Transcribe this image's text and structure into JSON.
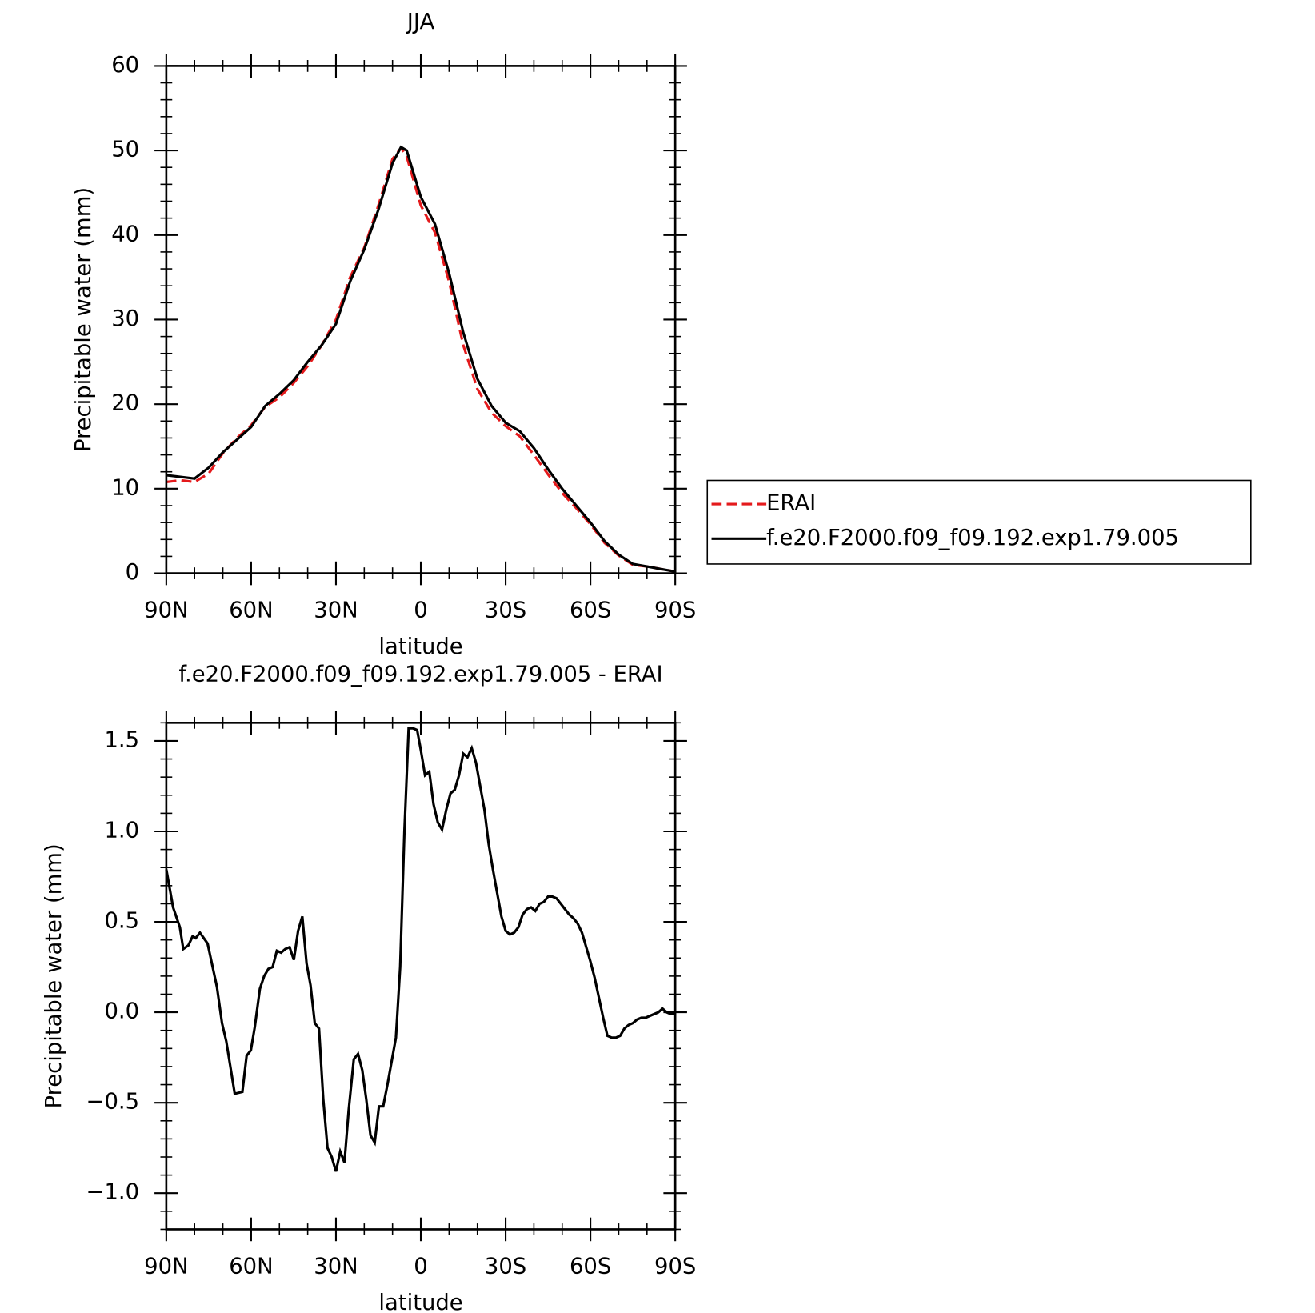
{
  "chart_data": [
    {
      "type": "line",
      "title": "JJA",
      "xlabel": "latitude",
      "ylabel": "Precipitable water (mm)",
      "x": [
        90,
        85,
        80,
        75,
        70,
        65,
        60,
        55,
        50,
        45,
        40,
        35,
        30,
        25,
        20,
        15,
        10,
        7,
        5,
        0,
        -5,
        -10,
        -15,
        -20,
        -25,
        -30,
        -35,
        -40,
        -45,
        -50,
        -55,
        -60,
        -65,
        -70,
        -75,
        -80,
        -85,
        -90
      ],
      "series": [
        {
          "name": "ERAI",
          "color": "#e41a1c",
          "linestyle": "dashed",
          "values": [
            10.8,
            11.0,
            10.8,
            11.8,
            14.2,
            16.0,
            17.5,
            19.7,
            20.8,
            22.5,
            24.5,
            27.0,
            30.0,
            35.0,
            38.5,
            43.5,
            49.0,
            50.3,
            49.3,
            43.5,
            40.3,
            34.5,
            27.0,
            21.8,
            19.0,
            17.4,
            16.2,
            14.0,
            11.7,
            9.5,
            7.7,
            5.8,
            3.6,
            2.1,
            1.0,
            0.8,
            0.5,
            0.2
          ]
        },
        {
          "name": "f.e20.F2000.f09_f09.192.exp1.79.005",
          "color": "#000000",
          "linestyle": "solid",
          "values": [
            11.6,
            11.4,
            11.2,
            12.5,
            14.3,
            15.8,
            17.3,
            19.8,
            21.2,
            22.8,
            25.0,
            27.0,
            29.5,
            34.5,
            38.3,
            43.0,
            48.5,
            50.4,
            50.0,
            44.5,
            41.3,
            35.5,
            28.5,
            23.0,
            19.8,
            17.8,
            16.8,
            14.8,
            12.3,
            10.0,
            8.0,
            6.0,
            3.8,
            2.2,
            1.1,
            0.8,
            0.5,
            0.2
          ]
        }
      ],
      "xlim": [
        90,
        -90
      ],
      "xticks": [
        {
          "value": 90,
          "label": "90N"
        },
        {
          "value": 60,
          "label": "60N"
        },
        {
          "value": 30,
          "label": "30N"
        },
        0,
        {
          "value": -30,
          "label": "30S"
        },
        {
          "value": -60,
          "label": "60S"
        },
        {
          "value": -90,
          "label": "90S"
        }
      ],
      "xminorticks": [
        80,
        70,
        50,
        40,
        20,
        10,
        -10,
        -20,
        -40,
        -50,
        -70,
        -80
      ],
      "ylim": [
        0,
        60
      ],
      "yticks": [
        0,
        10,
        20,
        30,
        40,
        50,
        60
      ],
      "yminorticks": [
        2,
        4,
        6,
        8,
        12,
        14,
        16,
        18,
        22,
        24,
        26,
        28,
        32,
        34,
        36,
        38,
        42,
        44,
        46,
        48,
        52,
        54,
        56,
        58
      ],
      "legend": "right"
    },
    {
      "type": "line",
      "title": "f.e20.F2000.f09_f09.192.exp1.79.005 - ERAI",
      "xlabel": "latitude",
      "ylabel": "Precipitable water (mm)",
      "x": [
        90,
        87.6,
        85.2,
        84,
        82.2,
        80.7,
        79.6,
        78.1,
        75.4,
        72.1,
        70.3,
        68.8,
        65.8,
        63.1,
        61.6,
        60.1,
        58.7,
        56.9,
        55.4,
        53.9,
        52.4,
        50.9,
        49.4,
        47.9,
        46.4,
        44.9,
        43.4,
        41.9,
        40.4,
        39,
        37.5,
        36,
        34.5,
        33,
        31.5,
        30,
        28.5,
        27,
        25.5,
        23.7,
        22.2,
        20.7,
        19.3,
        17.8,
        16.3,
        14.8,
        13.3,
        11.8,
        10.3,
        8.8,
        7.3,
        5.8,
        4.3,
        2.8,
        1.3,
        0,
        -1.5,
        -3,
        -4.5,
        -6,
        -7.5,
        -9,
        -10.5,
        -12,
        -13.5,
        -15,
        -16.5,
        -18,
        -19.5,
        -21,
        -22.5,
        -24,
        -25.5,
        -27,
        -28.5,
        -30,
        -31.5,
        -33,
        -34.5,
        -36,
        -37.5,
        -39,
        -40.5,
        -42,
        -43.5,
        -45,
        -46.5,
        -48,
        -49.5,
        -51,
        -52.5,
        -54,
        -55.5,
        -57,
        -58.5,
        -60,
        -61.5,
        -63,
        -64.5,
        -66,
        -67.5,
        -69,
        -70.5,
        -72,
        -73.5,
        -75,
        -76.5,
        -78,
        -79.5,
        -81,
        -82.5,
        -84,
        -85.5,
        -87,
        -88.5,
        -90
      ],
      "values": [
        0.79,
        0.58,
        0.47,
        0.35,
        0.37,
        0.42,
        0.41,
        0.44,
        0.38,
        0.14,
        -0.06,
        -0.16,
        -0.45,
        -0.44,
        -0.24,
        -0.21,
        -0.08,
        0.13,
        0.2,
        0.24,
        0.25,
        0.34,
        0.33,
        0.35,
        0.36,
        0.29,
        0.45,
        0.53,
        0.27,
        0.15,
        -0.06,
        -0.09,
        -0.48,
        -0.75,
        -0.8,
        -0.88,
        -0.77,
        -0.83,
        -0.54,
        -0.26,
        -0.23,
        -0.32,
        -0.48,
        -0.68,
        -0.72,
        -0.52,
        -0.52,
        -0.4,
        -0.27,
        -0.14,
        0.25,
        1.0,
        1.57,
        1.57,
        1.56,
        1.45,
        1.31,
        1.33,
        1.15,
        1.05,
        1.01,
        1.12,
        1.21,
        1.23,
        1.31,
        1.43,
        1.41,
        1.46,
        1.38,
        1.25,
        1.12,
        0.93,
        0.79,
        0.66,
        0.53,
        0.45,
        0.43,
        0.44,
        0.47,
        0.54,
        0.57,
        0.58,
        0.56,
        0.6,
        0.61,
        0.64,
        0.64,
        0.63,
        0.6,
        0.57,
        0.54,
        0.52,
        0.49,
        0.44,
        0.36,
        0.28,
        0.19,
        0.08,
        -0.03,
        -0.13,
        -0.14,
        -0.14,
        -0.13,
        -0.09,
        -0.07,
        -0.06,
        -0.04,
        -0.03,
        -0.03,
        -0.02,
        -0.01,
        0.0,
        0.02,
        0.0,
        -0.01,
        -0.01
      ],
      "color": "#000000",
      "xlim": [
        90,
        -90
      ],
      "xticks": [
        {
          "value": 90,
          "label": "90N"
        },
        {
          "value": 60,
          "label": "60N"
        },
        {
          "value": 30,
          "label": "30N"
        },
        0,
        {
          "value": -30,
          "label": "30S"
        },
        {
          "value": -60,
          "label": "60S"
        },
        {
          "value": -90,
          "label": "90S"
        }
      ],
      "xminorticks": [
        80,
        70,
        50,
        40,
        20,
        10,
        -10,
        -20,
        -40,
        -50,
        -70,
        -80
      ],
      "ylim": [
        -1.2,
        1.6
      ],
      "yticks": [
        {
          "value": -1.0,
          "label": "−1.0"
        },
        {
          "value": -0.5,
          "label": "−0.5"
        },
        {
          "value": 0,
          "label": "0.0"
        },
        0.5,
        {
          "value": 1.0,
          "label": "1.0"
        },
        1.5
      ],
      "yminorticks": [
        -1.2,
        -1.1,
        -0.9,
        -0.8,
        -0.7,
        -0.6,
        -0.4,
        -0.3,
        -0.2,
        -0.1,
        0.1,
        0.2,
        0.3,
        0.4,
        0.6,
        0.7,
        0.8,
        0.9,
        1.1,
        1.2,
        1.3,
        1.4,
        1.6
      ]
    }
  ]
}
